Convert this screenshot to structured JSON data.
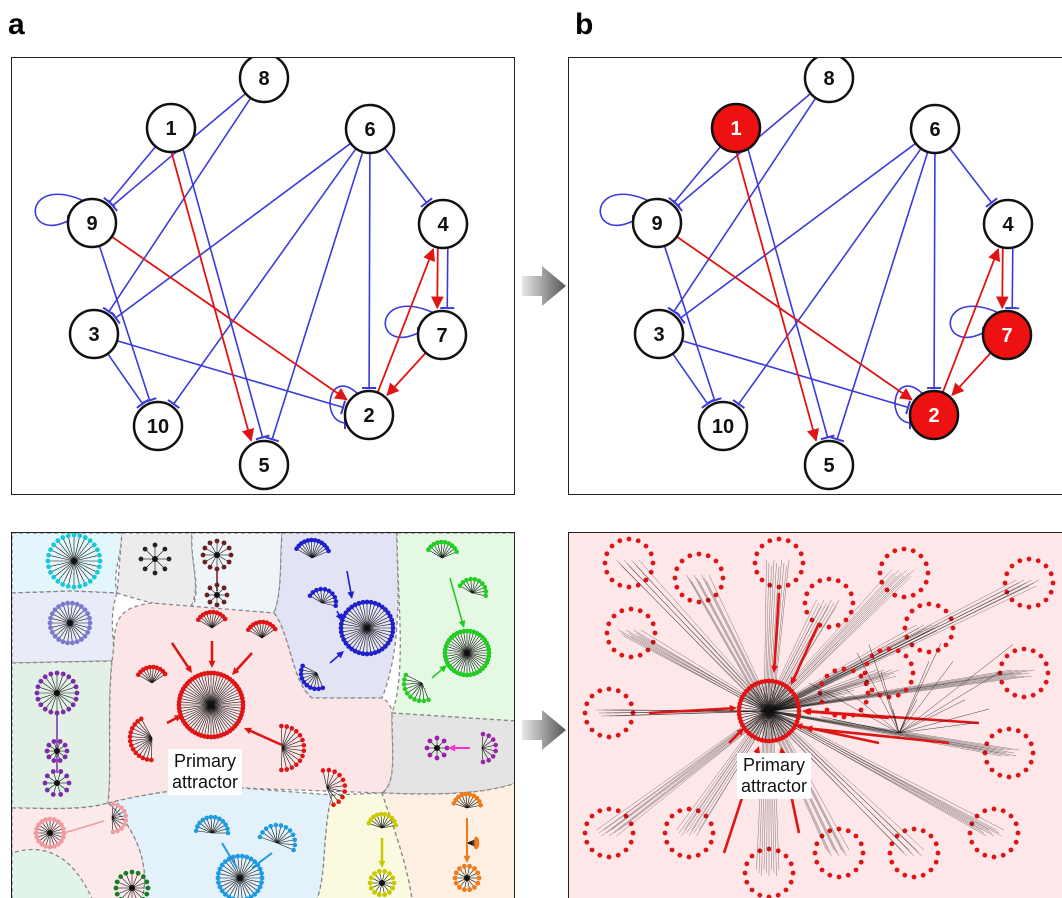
{
  "panels": {
    "a": {
      "label": "a"
    },
    "b": {
      "label": "b"
    }
  },
  "network": {
    "nodes": [
      {
        "id": "1"
      },
      {
        "id": "2"
      },
      {
        "id": "3"
      },
      {
        "id": "4"
      },
      {
        "id": "5"
      },
      {
        "id": "6"
      },
      {
        "id": "7"
      },
      {
        "id": "8"
      },
      {
        "id": "9"
      },
      {
        "id": "10"
      }
    ],
    "activated_in_b": [
      "1",
      "7",
      "2"
    ],
    "colors": {
      "inhibition": "#3b3bdc",
      "activation": "#e01414",
      "active_node": "#ee1111",
      "node_fill": "#ffffff"
    }
  },
  "landscape": {
    "callout_line1": "Primary",
    "callout_line2": "attractor",
    "colors": {
      "primary": "#e01414",
      "edge": "#111111"
    }
  },
  "icons": {
    "transition_arrow": "right-arrow-icon"
  }
}
